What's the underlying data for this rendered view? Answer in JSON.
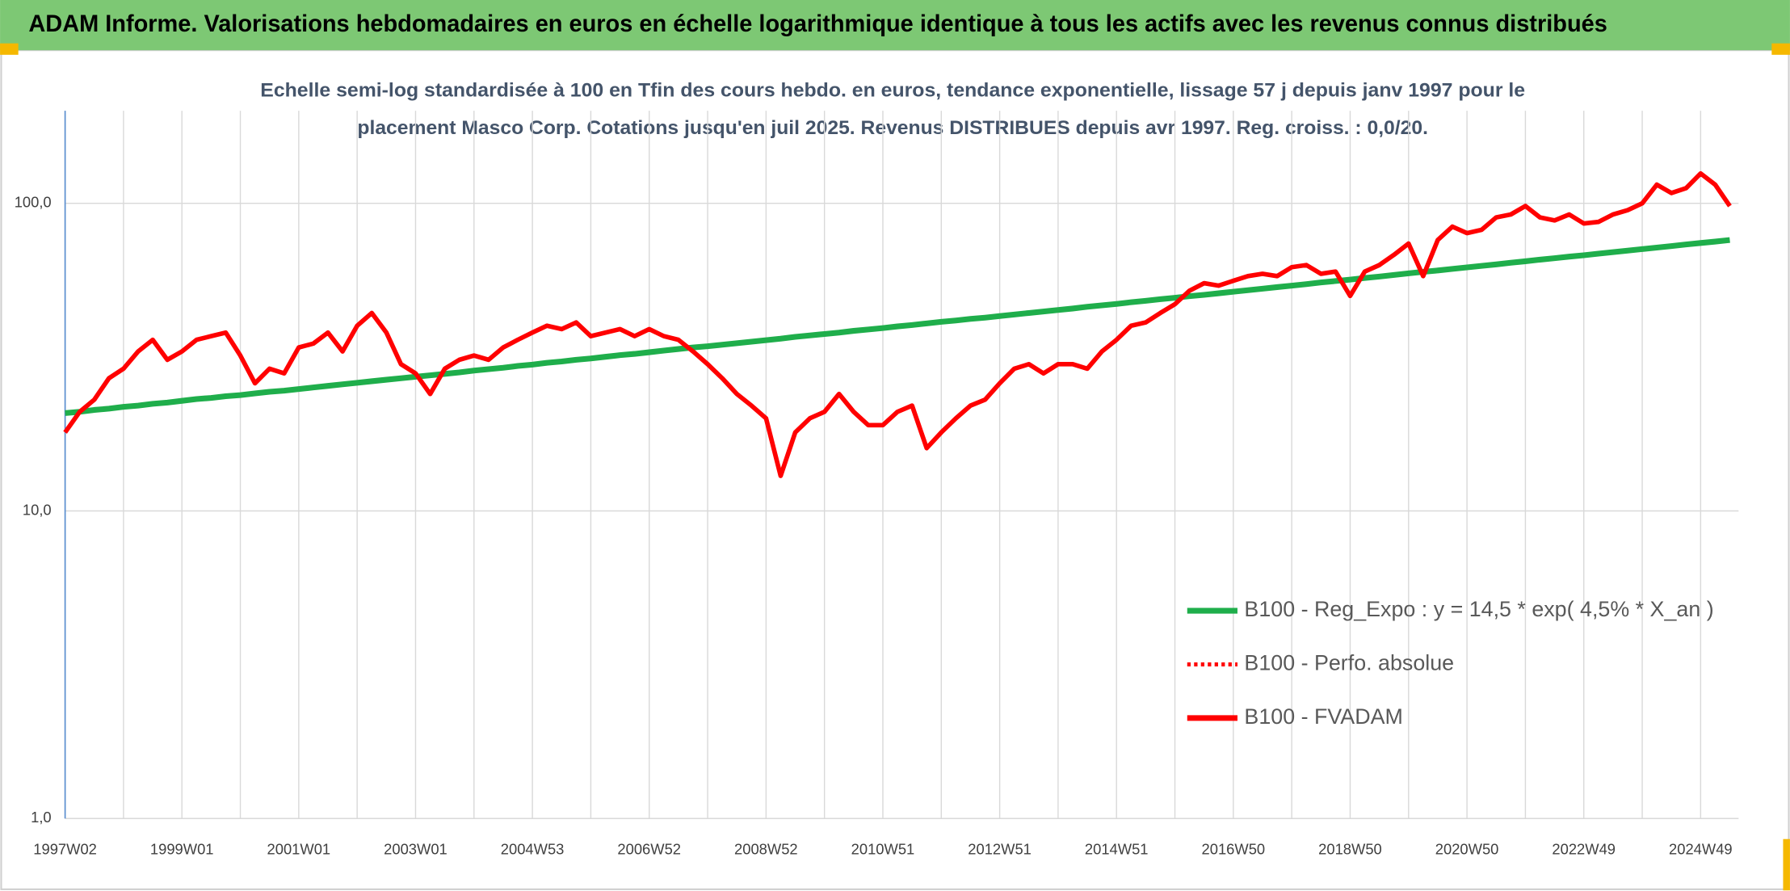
{
  "chart_data": {
    "type": "line",
    "title": "ADAM Informe. Valorisations hebdomadaires en euros en échelle logarithmique identique à tous les actifs avec les revenus connus distribués",
    "subtitle": [
      "Echelle semi-log standardisée à 100 en Tfin des cours hebdo. en euros, tendance exponentielle, lissage 57 j depuis janv 1997 pour le",
      "placement Masco Corp. Cotations jusqu'en juil 2025. Revenus DISTRIBUES depuis avr 1997. Reg. croiss. : 0,0/20."
    ],
    "log_scale": true,
    "grid": true,
    "legend": "lower right",
    "ylim": [
      1,
      200
    ],
    "yticks": [
      {
        "value": 1,
        "label": "1,0"
      },
      {
        "value": 10,
        "label": "10,0"
      },
      {
        "value": 100,
        "label": "100,0"
      }
    ],
    "categories": [
      "1997W02",
      null,
      null,
      null,
      null,
      null,
      null,
      null,
      "1999W01",
      null,
      null,
      null,
      null,
      null,
      null,
      null,
      "2001W01",
      null,
      null,
      null,
      null,
      null,
      null,
      null,
      "2003W01",
      null,
      null,
      null,
      null,
      null,
      null,
      null,
      "2004W53",
      null,
      null,
      null,
      null,
      null,
      null,
      null,
      "2006W52",
      null,
      null,
      null,
      null,
      null,
      null,
      null,
      "2008W52",
      null,
      null,
      null,
      null,
      null,
      null,
      null,
      "2010W51",
      null,
      null,
      null,
      null,
      null,
      null,
      null,
      "2012W51",
      null,
      null,
      null,
      null,
      null,
      null,
      null,
      "2014W51",
      null,
      null,
      null,
      null,
      null,
      null,
      null,
      "2016W50",
      null,
      null,
      null,
      null,
      null,
      null,
      null,
      "2018W50",
      null,
      null,
      null,
      null,
      null,
      null,
      null,
      "2020W50",
      null,
      null,
      null,
      null,
      null,
      null,
      null,
      "2022W49",
      null,
      null,
      null,
      null,
      null,
      null,
      null,
      "2024W49",
      null,
      null
    ],
    "series": [
      {
        "name": "B100 - Reg_Expo : y = 14,5 * exp( 4,5% *  X_an )",
        "color": "#1fae4b",
        "style": "solid",
        "values": [
          20.8,
          21.0,
          21.3,
          21.5,
          21.8,
          22.0,
          22.3,
          22.5,
          22.8,
          23.1,
          23.3,
          23.6,
          23.8,
          24.1,
          24.4,
          24.6,
          24.9,
          25.2,
          25.5,
          25.8,
          26.1,
          26.4,
          26.7,
          27.0,
          27.3,
          27.6,
          27.9,
          28.2,
          28.6,
          28.9,
          29.2,
          29.6,
          29.9,
          30.3,
          30.6,
          31.0,
          31.3,
          31.7,
          32.1,
          32.4,
          32.8,
          33.2,
          33.6,
          34.0,
          34.3,
          34.7,
          35.1,
          35.5,
          35.9,
          36.3,
          36.8,
          37.2,
          37.6,
          38.0,
          38.5,
          38.9,
          39.3,
          39.8,
          40.2,
          40.7,
          41.2,
          41.6,
          42.1,
          42.5,
          43.0,
          43.5,
          44.0,
          44.5,
          45.0,
          45.5,
          46.1,
          46.6,
          47.1,
          47.7,
          48.2,
          48.8,
          49.3,
          49.9,
          50.4,
          51.0,
          51.6,
          52.2,
          52.8,
          53.4,
          54.0,
          54.6,
          55.3,
          55.9,
          56.5,
          57.2,
          57.8,
          58.5,
          59.2,
          59.9,
          60.5,
          61.2,
          61.9,
          62.6,
          63.3,
          64.1,
          64.8,
          65.6,
          66.3,
          67.1,
          67.8,
          68.6,
          69.4,
          70.2,
          71.0,
          71.8,
          72.6,
          73.5,
          74.3,
          75.1,
          76.0
        ]
      },
      {
        "name": "B100 - Perfo. absolue",
        "color": "#ff0000",
        "style": "dotted",
        "values": [
          18,
          21,
          23,
          27,
          29,
          33,
          36,
          31,
          33,
          36,
          37,
          38,
          32,
          26,
          29,
          28,
          34,
          35,
          38,
          33,
          40,
          44,
          38,
          30,
          28,
          24,
          29,
          31,
          32,
          31,
          34,
          36,
          38,
          40,
          39,
          41,
          37,
          38,
          39,
          37,
          39,
          37,
          36,
          33,
          30,
          27,
          24,
          22,
          20,
          13,
          18,
          20,
          21,
          24,
          21,
          19,
          19,
          21,
          22,
          16,
          18,
          20,
          22,
          23,
          26,
          29,
          30,
          28,
          30,
          30,
          29,
          33,
          36,
          40,
          41,
          44,
          47,
          52,
          55,
          54,
          56,
          58,
          59,
          58,
          62,
          63,
          59,
          60,
          50,
          60,
          63,
          68,
          74,
          58,
          76,
          84,
          80,
          82,
          90,
          92,
          98,
          90,
          88,
          92,
          86,
          87,
          92,
          95,
          100,
          115,
          108,
          112,
          125,
          115,
          98
        ]
      },
      {
        "name": "B100 - FVADAM",
        "color": "#ff0000",
        "style": "solid",
        "values": [
          18,
          21,
          23,
          27,
          29,
          33,
          36,
          31,
          33,
          36,
          37,
          38,
          32,
          26,
          29,
          28,
          34,
          35,
          38,
          33,
          40,
          44,
          38,
          30,
          28,
          24,
          29,
          31,
          32,
          31,
          34,
          36,
          38,
          40,
          39,
          41,
          37,
          38,
          39,
          37,
          39,
          37,
          36,
          33,
          30,
          27,
          24,
          22,
          20,
          13,
          18,
          20,
          21,
          24,
          21,
          19,
          19,
          21,
          22,
          16,
          18,
          20,
          22,
          23,
          26,
          29,
          30,
          28,
          30,
          30,
          29,
          33,
          36,
          40,
          41,
          44,
          47,
          52,
          55,
          54,
          56,
          58,
          59,
          58,
          62,
          63,
          59,
          60,
          50,
          60,
          63,
          68,
          74,
          58,
          76,
          84,
          80,
          82,
          90,
          92,
          98,
          90,
          88,
          92,
          86,
          87,
          92,
          95,
          100,
          115,
          108,
          112,
          125,
          115,
          98
        ]
      }
    ]
  }
}
